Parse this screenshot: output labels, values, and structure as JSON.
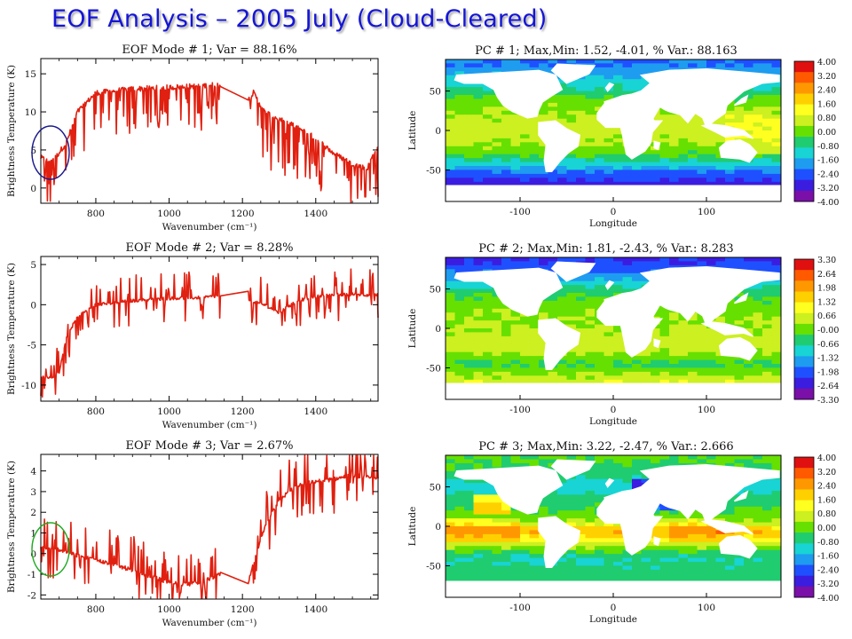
{
  "slide_title": "EOF Analysis – 2005 July (Cloud-Cleared)",
  "colors": {
    "title": "#1515d6",
    "spectrum_line": "#e02010",
    "ellipse_mode1": "#1a1a8c",
    "ellipse_mode3": "#22aa22",
    "ocean_scale": [
      "#7a10a8",
      "#3b1de0",
      "#1f50ff",
      "#1e9cf0",
      "#18d4d4",
      "#20cc70",
      "#66e000",
      "#ccf020",
      "#ffff20",
      "#ffd000",
      "#ff9800",
      "#ff5a00",
      "#e01010"
    ],
    "land": "#ffffff"
  },
  "chart_data": [
    {
      "type": "line",
      "title": "EOF Mode # 1; Var = 88.16%",
      "xlabel": "Wavenumber (cm⁻¹)",
      "ylabel": "Brightness Temperature (K)",
      "xlim": [
        650,
        1570
      ],
      "ylim": [
        -2,
        17
      ],
      "x_ticks": [
        "800",
        "1000",
        "1200",
        "1400"
      ],
      "y_ticks": [
        "0",
        "5",
        "10",
        "15"
      ],
      "spectral_gap": [
        1140,
        1215
      ],
      "series": [
        {
          "x": [
            650,
            670,
            690,
            720,
            750,
            800,
            900,
            1000,
            1080,
            1140,
            1215,
            1230,
            1260,
            1300,
            1350,
            1400,
            1450,
            1500,
            1540,
            1570
          ],
          "values": [
            4,
            3.5,
            4,
            6,
            10,
            12.5,
            13,
            13.2,
            13.4,
            13.6,
            11.5,
            12.5,
            10,
            9,
            8,
            6.5,
            4.5,
            3.2,
            2.5,
            5.8
          ]
        }
      ]
    },
    {
      "type": "line",
      "title": "EOF Mode # 2; Var = 8.28%",
      "xlabel": "Wavenumber (cm⁻¹)",
      "ylabel": "Brightness Temperature (K)",
      "xlim": [
        650,
        1570
      ],
      "ylim": [
        -12,
        6
      ],
      "x_ticks": [
        "800",
        "1000",
        "1200",
        "1400"
      ],
      "y_ticks": [
        "-10",
        "-5",
        "0",
        "5"
      ],
      "spectral_gap": [
        1140,
        1215
      ],
      "series": [
        {
          "x": [
            650,
            680,
            700,
            720,
            750,
            800,
            900,
            1000,
            1100,
            1140,
            1215,
            1260,
            1300,
            1350,
            1400,
            1450,
            1500,
            1570
          ],
          "values": [
            -9,
            -9,
            -8.5,
            -4,
            -1.5,
            0,
            0.5,
            0.8,
            0.9,
            1.2,
            0.5,
            0,
            -1,
            0.5,
            1,
            1.2,
            1.3,
            1.2
          ]
        }
      ]
    },
    {
      "type": "line",
      "title": "EOF Mode # 3; Var = 2.67%",
      "xlabel": "Wavenumber (cm⁻¹)",
      "ylabel": "Brightness Temperature (K)",
      "xlim": [
        650,
        1570
      ],
      "ylim": [
        -2.2,
        4.8
      ],
      "x_ticks": [
        "800",
        "1000",
        "1200",
        "1400"
      ],
      "y_ticks": [
        "-2",
        "-1",
        "0",
        "1",
        "2",
        "3",
        "4"
      ],
      "spectral_gap": [
        1140,
        1215
      ],
      "series": [
        {
          "x": [
            650,
            700,
            750,
            800,
            900,
            1000,
            1050,
            1100,
            1140,
            1215,
            1230,
            1260,
            1300,
            1350,
            1400,
            1450,
            1500,
            1570
          ],
          "values": [
            0.3,
            0.2,
            -0.1,
            -0.3,
            -0.8,
            -1.4,
            -1.5,
            -1.3,
            -1.0,
            -1.5,
            -0.5,
            1.2,
            2.6,
            3.3,
            3.5,
            3.6,
            3.8,
            3.6
          ]
        }
      ]
    },
    {
      "type": "heatmap",
      "title": "PC # 1; Max,Min: 1.52, -4.01, % Var.: 88.163",
      "xlabel": "Longitude",
      "ylabel": "Latitude",
      "xlim": [
        -180,
        180
      ],
      "ylim": [
        -90,
        90
      ],
      "x_ticks": [
        "-100",
        "0",
        "100"
      ],
      "y_ticks": [
        "-50",
        "0",
        "50"
      ],
      "colorbar": [
        "4.00",
        "3.20",
        "2.40",
        "1.60",
        "0.80",
        "0.00",
        "-0.80",
        "-1.60",
        "-2.40",
        "-3.20",
        "-4.00"
      ],
      "latitude_profile": {
        "lat": [
          -85,
          -70,
          -55,
          -45,
          -30,
          -15,
          0,
          15,
          30,
          45,
          55,
          70,
          85
        ],
        "values": [
          -3.8,
          -3.2,
          -2.4,
          -1.4,
          -0.2,
          0.4,
          0.6,
          0.5,
          0.2,
          -0.4,
          -1.0,
          -1.6,
          -2.2
        ]
      }
    },
    {
      "type": "heatmap",
      "title": "PC # 2; Max,Min: 1.81, -2.43, % Var.: 8.283",
      "xlabel": "Longitude",
      "ylabel": "Latitude",
      "xlim": [
        -180,
        180
      ],
      "ylim": [
        -90,
        90
      ],
      "x_ticks": [
        "-100",
        "0",
        "100"
      ],
      "y_ticks": [
        "-50",
        "0",
        "50"
      ],
      "colorbar": [
        "3.30",
        "2.64",
        "1.98",
        "1.32",
        "0.66",
        "-0.00",
        "-0.66",
        "-1.32",
        "-1.98",
        "-2.64",
        "-3.30"
      ],
      "latitude_profile": {
        "lat": [
          -85,
          -75,
          -60,
          -45,
          -30,
          -15,
          0,
          15,
          30,
          45,
          60,
          75,
          85
        ],
        "values": [
          1.5,
          1.0,
          0.3,
          -0.4,
          0.4,
          0.5,
          0.3,
          0.2,
          0.0,
          -0.4,
          -1.2,
          -2.0,
          -2.3
        ]
      }
    },
    {
      "type": "heatmap",
      "title": "PC # 3; Max,Min: 3.22, -2.47, % Var.: 2.666",
      "xlabel": "Longitude",
      "ylabel": "Latitude",
      "xlim": [
        -180,
        180
      ],
      "ylim": [
        -90,
        90
      ],
      "x_ticks": [
        "-100",
        "0",
        "100"
      ],
      "y_ticks": [
        "-50",
        "0",
        "50"
      ],
      "colorbar": [
        "4.00",
        "3.20",
        "2.40",
        "1.60",
        "0.80",
        "0.00",
        "-0.80",
        "-1.60",
        "-2.40",
        "-3.20",
        "-4.00"
      ],
      "latitude_profile": {
        "lat": [
          -85,
          -60,
          -40,
          -25,
          -15,
          -5,
          5,
          20,
          35,
          50,
          70,
          85
        ],
        "values": [
          -0.5,
          -0.6,
          -1.0,
          0.4,
          1.4,
          2.2,
          0.4,
          -0.3,
          -0.6,
          -1.3,
          -0.5,
          -0.2
        ]
      }
    }
  ]
}
